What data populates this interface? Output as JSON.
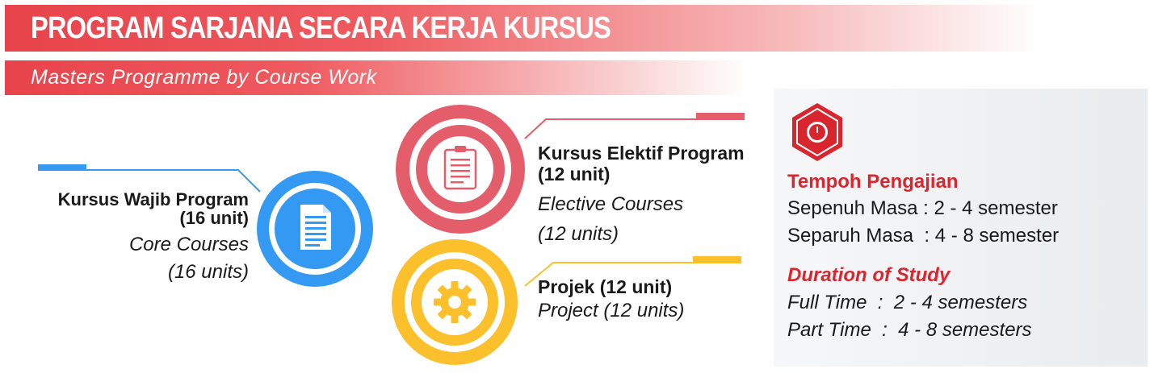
{
  "header": {
    "title": "PROGRAM SARJANA SECARA KERJA KURSUS",
    "subtitle": "Masters Programme by Course Work"
  },
  "core": {
    "title": "Kursus Wajib Program",
    "units": "(16 unit)",
    "en_title": "Core Courses",
    "en_units": "(16 units)",
    "icon": "document-icon",
    "color": "#3399f3"
  },
  "elective": {
    "title": "Kursus Elektif Program",
    "units": "(12 unit)",
    "en_title": "Elective Courses",
    "en_units": "(12 units)",
    "icon": "clipboard-icon",
    "color": "#e35d6a"
  },
  "project": {
    "title": "Projek (12 unit)",
    "en_title": "Project (12 units)",
    "icon": "gear-icon",
    "color": "#fcc02d"
  },
  "duration": {
    "icon": "clock-icon",
    "ms_heading": "Tempoh Pengajian",
    "ms_full": "Sepenuh Masa : 2 - 4 semester",
    "ms_part": "Separuh Masa  : 4 - 8 semester",
    "en_heading": "Duration of Study",
    "en_full": "Full Time  :  2 - 4 semesters",
    "en_part": "Part Time  :  4 - 8 semesters",
    "accent": "#d9262e"
  }
}
